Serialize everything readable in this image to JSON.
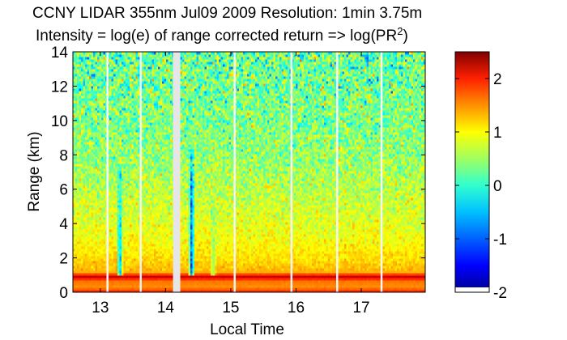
{
  "chart_data": {
    "type": "heatmap",
    "title": "CCNY LIDAR 355nm Jul09 2009 Resolution: 1min 3.75m",
    "subtitle_prefix": "Intensity = log(e) of range corrected return => log(PR",
    "subtitle_sup": "2",
    "subtitle_suffix": ")",
    "xlabel": "Local Time",
    "ylabel": "Range (km)",
    "xlim": [
      12.58,
      17.98
    ],
    "ylim": [
      0,
      14
    ],
    "xticks": [
      13,
      14,
      15,
      16,
      17
    ],
    "yticks": [
      0,
      2,
      4,
      6,
      8,
      10,
      12,
      14
    ],
    "colorbar": {
      "range": [
        -2,
        2.5
      ],
      "ticks": [
        -2,
        -1,
        0,
        1,
        2
      ],
      "colormap": "jet"
    },
    "data_gaps_local_time": [
      13.11,
      13.62,
      14.17,
      15.06,
      15.93,
      16.63,
      17.31
    ],
    "cloud_features": [
      {
        "time": 13.3,
        "top_km": 7.5,
        "min_value": -1.2
      },
      {
        "time": 14.4,
        "top_km": 8.5,
        "min_value": -1.9
      },
      {
        "time": 14.73,
        "top_km": 5.5,
        "min_value": 0.0
      }
    ],
    "profile": {
      "range_km": [
        0,
        0.3,
        0.7,
        0.9,
        1.2,
        2,
        3,
        4,
        6,
        8,
        10,
        12,
        14
      ],
      "typical_value": [
        1.9,
        1.3,
        1.45,
        2.2,
        1.15,
        0.95,
        0.8,
        0.7,
        0.5,
        0.35,
        0.25,
        0.2,
        0.1
      ]
    }
  }
}
